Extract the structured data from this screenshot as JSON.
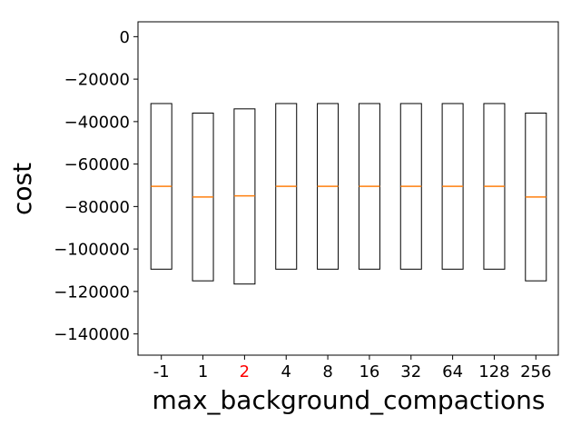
{
  "chart_data": {
    "type": "box",
    "xlabel": "max_background_compactions",
    "ylabel": "cost",
    "ylim": [
      -150000,
      7000
    ],
    "yticks": [
      0,
      -20000,
      -40000,
      -60000,
      -80000,
      -100000,
      -120000,
      -140000
    ],
    "ytick_labels": [
      "0",
      "−20000",
      "−40000",
      "−60000",
      "−80000",
      "−100000",
      "−120000",
      "−140000"
    ],
    "categories": [
      "-1",
      "1",
      "2",
      "4",
      "8",
      "16",
      "32",
      "64",
      "128",
      "256"
    ],
    "highlighted_category": "2",
    "boxes": [
      {
        "q1": -109500,
        "median": -70500,
        "q3": -31500
      },
      {
        "q1": -115000,
        "median": -75500,
        "q3": -36000
      },
      {
        "q1": -116500,
        "median": -75000,
        "q3": -34000
      },
      {
        "q1": -109500,
        "median": -70500,
        "q3": -31500
      },
      {
        "q1": -109500,
        "median": -70500,
        "q3": -31500
      },
      {
        "q1": -109500,
        "median": -70500,
        "q3": -31500
      },
      {
        "q1": -109500,
        "median": -70500,
        "q3": -31500
      },
      {
        "q1": -109500,
        "median": -70500,
        "q3": -31500
      },
      {
        "q1": -109500,
        "median": -70500,
        "q3": -31500
      },
      {
        "q1": -115000,
        "median": -75500,
        "q3": -36000
      }
    ],
    "colors": {
      "box_edge": "#000000",
      "median": "#ff7f0e",
      "highlight_label": "#ff0000",
      "tick_label": "#000000"
    }
  }
}
